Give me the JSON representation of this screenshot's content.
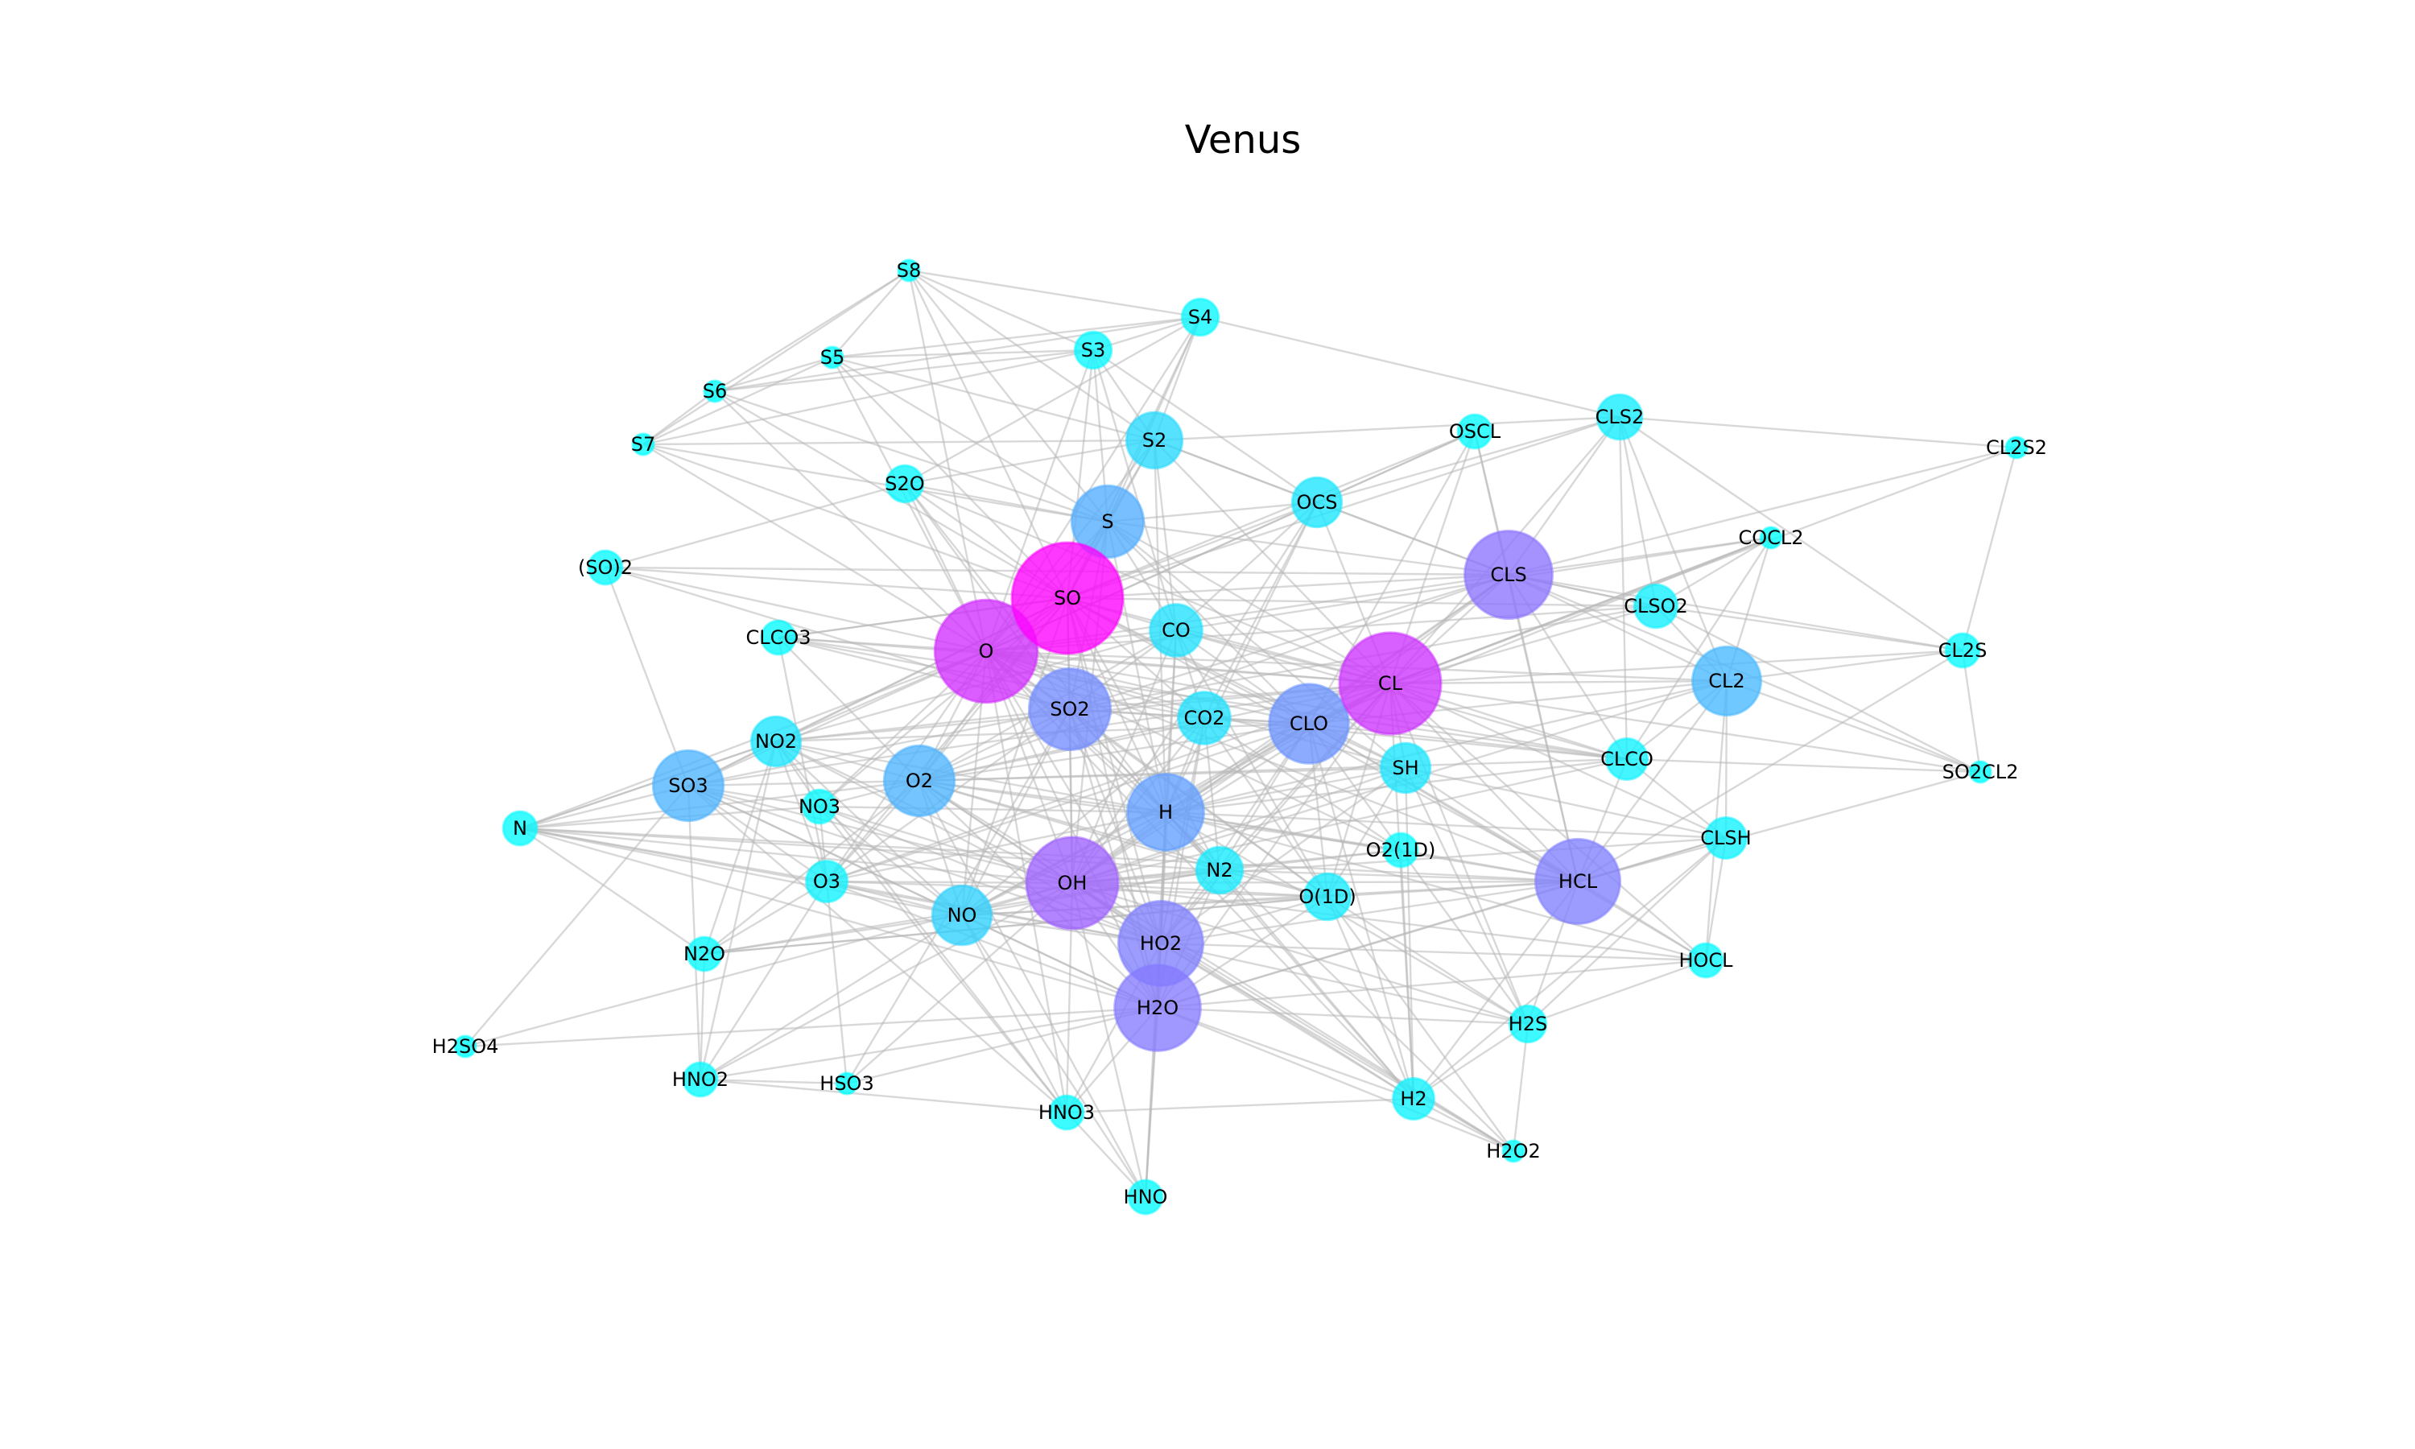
{
  "title": "Venus",
  "colors": {
    "background": "#ffffff",
    "edge": "#b8b8b8",
    "scale": [
      "#00ffff",
      "#ff00ff"
    ]
  },
  "nodes": [
    {
      "id": "S8",
      "degree": 0.0
    },
    {
      "id": "S4",
      "degree": 0.03
    },
    {
      "id": "S3",
      "degree": 0.03
    },
    {
      "id": "S5",
      "degree": 0.0
    },
    {
      "id": "S6",
      "degree": 0.0
    },
    {
      "id": "S7",
      "degree": 0.0
    },
    {
      "id": "S2",
      "degree": 0.15
    },
    {
      "id": "S2O",
      "degree": 0.03
    },
    {
      "id": "S",
      "degree": 0.32
    },
    {
      "id": "OCS",
      "degree": 0.1
    },
    {
      "id": "OSCL",
      "degree": 0.02
    },
    {
      "id": "CLS2",
      "degree": 0.07
    },
    {
      "id": "CL2S2",
      "degree": 0.0
    },
    {
      "id": "(SO)2",
      "degree": 0.02
    },
    {
      "id": "SO",
      "degree": 1.0
    },
    {
      "id": "CLS",
      "degree": 0.55
    },
    {
      "id": "COCL2",
      "degree": 0.0
    },
    {
      "id": "CLSO2",
      "degree": 0.06
    },
    {
      "id": "CLCO3",
      "degree": 0.02
    },
    {
      "id": "O",
      "degree": 0.82
    },
    {
      "id": "CO",
      "degree": 0.12
    },
    {
      "id": "CL",
      "degree": 0.8
    },
    {
      "id": "CL2",
      "degree": 0.28
    },
    {
      "id": "CL2S",
      "degree": 0.02
    },
    {
      "id": "SO2",
      "degree": 0.45
    },
    {
      "id": "CO2",
      "degree": 0.12
    },
    {
      "id": "CLO",
      "degree": 0.42
    },
    {
      "id": "NO2",
      "degree": 0.1
    },
    {
      "id": "SH",
      "degree": 0.1
    },
    {
      "id": "CLCO",
      "degree": 0.05
    },
    {
      "id": "SO3",
      "degree": 0.3
    },
    {
      "id": "O2",
      "degree": 0.3
    },
    {
      "id": "SO2CL2",
      "degree": 0.0
    },
    {
      "id": "NO3",
      "degree": 0.02
    },
    {
      "id": "H",
      "degree": 0.38
    },
    {
      "id": "N",
      "degree": 0.02
    },
    {
      "id": "O2(1D)",
      "degree": 0.02
    },
    {
      "id": "CLSH",
      "degree": 0.05
    },
    {
      "id": "N2",
      "degree": 0.08
    },
    {
      "id": "O3",
      "degree": 0.05
    },
    {
      "id": "OH",
      "degree": 0.62
    },
    {
      "id": "HCL",
      "degree": 0.5
    },
    {
      "id": "O(1D)",
      "degree": 0.08
    },
    {
      "id": "NO",
      "degree": 0.18
    },
    {
      "id": "N2O",
      "degree": 0.02
    },
    {
      "id": "HO2",
      "degree": 0.5
    },
    {
      "id": "HOCL",
      "degree": 0.02
    },
    {
      "id": "H2O",
      "degree": 0.52
    },
    {
      "id": "H2S",
      "degree": 0.03
    },
    {
      "id": "H2SO4",
      "degree": 0.0
    },
    {
      "id": "HNO2",
      "degree": 0.02
    },
    {
      "id": "HSO3",
      "degree": 0.0
    },
    {
      "id": "HNO3",
      "degree": 0.02
    },
    {
      "id": "H2",
      "degree": 0.05
    },
    {
      "id": "H2O2",
      "degree": 0.0
    },
    {
      "id": "HNO",
      "degree": 0.02
    }
  ],
  "edges": [
    [
      "S8",
      "S3"
    ],
    [
      "S8",
      "S4"
    ],
    [
      "S8",
      "S6"
    ],
    [
      "S8",
      "S7"
    ],
    [
      "S8",
      "SO"
    ],
    [
      "S8",
      "S"
    ],
    [
      "S8",
      "S2"
    ],
    [
      "S8",
      "O"
    ],
    [
      "S8",
      "S5"
    ],
    [
      "S4",
      "S3"
    ],
    [
      "S4",
      "S2"
    ],
    [
      "S4",
      "S"
    ],
    [
      "S4",
      "SO"
    ],
    [
      "S4",
      "O"
    ],
    [
      "S4",
      "CLS2"
    ],
    [
      "S4",
      "S2O"
    ],
    [
      "S4",
      "S5"
    ],
    [
      "S4",
      "S6"
    ],
    [
      "S3",
      "S2"
    ],
    [
      "S3",
      "S"
    ],
    [
      "S3",
      "SO"
    ],
    [
      "S3",
      "O"
    ],
    [
      "S3",
      "S5"
    ],
    [
      "S3",
      "S6"
    ],
    [
      "S3",
      "S7"
    ],
    [
      "S3",
      "OCS"
    ],
    [
      "S3",
      "CO"
    ],
    [
      "S5",
      "S6"
    ],
    [
      "S5",
      "S7"
    ],
    [
      "S5",
      "SO"
    ],
    [
      "S5",
      "S"
    ],
    [
      "S5",
      "O"
    ],
    [
      "S5",
      "S2"
    ],
    [
      "S6",
      "S7"
    ],
    [
      "S6",
      "SO"
    ],
    [
      "S6",
      "S"
    ],
    [
      "S6",
      "O"
    ],
    [
      "S7",
      "SO"
    ],
    [
      "S7",
      "S"
    ],
    [
      "S7",
      "O"
    ],
    [
      "S7",
      "S2"
    ],
    [
      "S2",
      "S"
    ],
    [
      "S2",
      "SO"
    ],
    [
      "S2",
      "O"
    ],
    [
      "S2",
      "OCS"
    ],
    [
      "S2",
      "CLS"
    ],
    [
      "S2",
      "CL"
    ],
    [
      "S2",
      "H"
    ],
    [
      "S2",
      "S2O"
    ],
    [
      "S2",
      "CO"
    ],
    [
      "S2O",
      "SO"
    ],
    [
      "S2O",
      "O"
    ],
    [
      "S2O",
      "S"
    ],
    [
      "S2O",
      "SO2"
    ],
    [
      "S2O",
      "CL"
    ],
    [
      "S2O",
      "H"
    ],
    [
      "S",
      "SO"
    ],
    [
      "S",
      "O"
    ],
    [
      "S",
      "O2"
    ],
    [
      "S",
      "OCS"
    ],
    [
      "S",
      "CO"
    ],
    [
      "S",
      "CLS"
    ],
    [
      "S",
      "CL"
    ],
    [
      "S",
      "H"
    ],
    [
      "S",
      "OH"
    ],
    [
      "S",
      "SH"
    ],
    [
      "S",
      "SO2"
    ],
    [
      "S",
      "CLO"
    ],
    [
      "OCS",
      "O"
    ],
    [
      "OCS",
      "SO"
    ],
    [
      "OCS",
      "CO"
    ],
    [
      "OCS",
      "CLS"
    ],
    [
      "OCS",
      "CL"
    ],
    [
      "OCS",
      "OH"
    ],
    [
      "OCS",
      "H"
    ],
    [
      "OCS",
      "CO2"
    ],
    [
      "OCS",
      "OSCL"
    ],
    [
      "OCS",
      "CLS2"
    ],
    [
      "OSCL",
      "CLS"
    ],
    [
      "OSCL",
      "CL"
    ],
    [
      "OSCL",
      "SO"
    ],
    [
      "OSCL",
      "O"
    ],
    [
      "OSCL",
      "CLO"
    ],
    [
      "OSCL",
      "HCL"
    ],
    [
      "CLS2",
      "CL2S2"
    ],
    [
      "CLS2",
      "CLS"
    ],
    [
      "CLS2",
      "CL"
    ],
    [
      "CLS2",
      "CL2"
    ],
    [
      "CLS2",
      "S2"
    ],
    [
      "CLS2",
      "SO"
    ],
    [
      "CLS2",
      "CLSO2"
    ],
    [
      "CLS2",
      "CLCO"
    ],
    [
      "CL2S2",
      "CLS"
    ],
    [
      "CL2S2",
      "CL2S"
    ],
    [
      "CL2S2",
      "CL"
    ],
    [
      "(SO)2",
      "SO"
    ],
    [
      "(SO)2",
      "SO2"
    ],
    [
      "(SO)2",
      "S2O"
    ],
    [
      "(SO)2",
      "O"
    ],
    [
      "(SO)2",
      "SO3"
    ],
    [
      "(SO)2",
      "CLS"
    ],
    [
      "SO",
      "O"
    ],
    [
      "SO",
      "O2"
    ],
    [
      "SO",
      "SO2"
    ],
    [
      "SO",
      "SO3"
    ],
    [
      "SO",
      "CO"
    ],
    [
      "SO",
      "CO2"
    ],
    [
      "SO",
      "CLO"
    ],
    [
      "SO",
      "CL"
    ],
    [
      "SO",
      "CLS"
    ],
    [
      "SO",
      "OH"
    ],
    [
      "SO",
      "H"
    ],
    [
      "SO",
      "HO2"
    ],
    [
      "SO",
      "NO"
    ],
    [
      "SO",
      "NO2"
    ],
    [
      "SO",
      "NO3"
    ],
    [
      "SO",
      "O3"
    ],
    [
      "SO",
      "SH"
    ],
    [
      "SO",
      "CLSO2"
    ],
    [
      "SO",
      "CLCO3"
    ],
    [
      "SO",
      "H2O"
    ],
    [
      "SO",
      "N2"
    ],
    [
      "SO",
      "HCL"
    ],
    [
      "CLS",
      "CL"
    ],
    [
      "CLS",
      "CL2"
    ],
    [
      "CLS",
      "CLO"
    ],
    [
      "CLS",
      "O"
    ],
    [
      "CLS",
      "SO2"
    ],
    [
      "CLS",
      "CLSO2"
    ],
    [
      "CLS",
      "COCL2"
    ],
    [
      "CLS",
      "CL2S"
    ],
    [
      "CLS",
      "HCL"
    ],
    [
      "CLS",
      "CLCO"
    ],
    [
      "CLS",
      "H"
    ],
    [
      "CLS",
      "OH"
    ],
    [
      "CLS",
      "SO2CL2"
    ],
    [
      "CLS",
      "O2"
    ],
    [
      "COCL2",
      "CL"
    ],
    [
      "COCL2",
      "CLCO"
    ],
    [
      "COCL2",
      "CL2"
    ],
    [
      "COCL2",
      "CLO"
    ],
    [
      "COCL2",
      "CO"
    ],
    [
      "COCL2",
      "CLSO2"
    ],
    [
      "CLSO2",
      "CL"
    ],
    [
      "CLSO2",
      "SO2"
    ],
    [
      "CLSO2",
      "CL2"
    ],
    [
      "CLSO2",
      "SO2CL2"
    ],
    [
      "CLSO2",
      "O"
    ],
    [
      "CLSO2",
      "CLS"
    ],
    [
      "CLCO3",
      "CLCO"
    ],
    [
      "CLCO3",
      "O2"
    ],
    [
      "CLCO3",
      "CL"
    ],
    [
      "CLCO3",
      "CO2"
    ],
    [
      "CLCO3",
      "O"
    ],
    [
      "CLCO3",
      "SO"
    ],
    [
      "CLCO3",
      "O3"
    ],
    [
      "O",
      "O2"
    ],
    [
      "O",
      "O3"
    ],
    [
      "O",
      "SO2"
    ],
    [
      "O",
      "SO3"
    ],
    [
      "O",
      "CO"
    ],
    [
      "O",
      "CO2"
    ],
    [
      "O",
      "CLO"
    ],
    [
      "O",
      "CL"
    ],
    [
      "O",
      "OH"
    ],
    [
      "O",
      "HO2"
    ],
    [
      "O",
      "H"
    ],
    [
      "O",
      "NO"
    ],
    [
      "O",
      "NO2"
    ],
    [
      "O",
      "NO3"
    ],
    [
      "O",
      "H2O"
    ],
    [
      "O",
      "N"
    ],
    [
      "O",
      "N2"
    ],
    [
      "O",
      "HCL"
    ],
    [
      "O",
      "CL2"
    ],
    [
      "O",
      "SH"
    ],
    [
      "O",
      "H2"
    ],
    [
      "O",
      "O(1D)"
    ],
    [
      "O",
      "O2(1D)"
    ],
    [
      "O",
      "CLCO"
    ],
    [
      "O",
      "HNO3"
    ],
    [
      "CO",
      "CO2"
    ],
    [
      "CO",
      "OH"
    ],
    [
      "CO",
      "O2"
    ],
    [
      "CO",
      "CLCO"
    ],
    [
      "CO",
      "CL"
    ],
    [
      "CO",
      "H"
    ],
    [
      "CO",
      "CLO"
    ],
    [
      "CO",
      "HO2"
    ],
    [
      "CO",
      "SO2"
    ],
    [
      "CO",
      "NO2"
    ],
    [
      "CO",
      "O(1D)"
    ],
    [
      "CL",
      "CL2"
    ],
    [
      "CL",
      "CLO"
    ],
    [
      "CL",
      "HCL"
    ],
    [
      "CL",
      "CLCO"
    ],
    [
      "CL",
      "COCL2"
    ],
    [
      "CL",
      "O2"
    ],
    [
      "CL",
      "O3"
    ],
    [
      "CL",
      "H"
    ],
    [
      "CL",
      "HO2"
    ],
    [
      "CL",
      "OH"
    ],
    [
      "CL",
      "H2"
    ],
    [
      "CL",
      "SH"
    ],
    [
      "CL",
      "H2S"
    ],
    [
      "CL",
      "CLSH"
    ],
    [
      "CL",
      "HOCL"
    ],
    [
      "CL",
      "SO2"
    ],
    [
      "CL",
      "SO3"
    ],
    [
      "CL",
      "CL2S"
    ],
    [
      "CL",
      "SO2CL2"
    ],
    [
      "CL",
      "NO"
    ],
    [
      "CL",
      "NO2"
    ],
    [
      "CL",
      "H2O"
    ],
    [
      "CL",
      "N2"
    ],
    [
      "CL",
      "O(1D)"
    ],
    [
      "CL2",
      "CL2S"
    ],
    [
      "CL2",
      "CLO"
    ],
    [
      "CL2",
      "HCL"
    ],
    [
      "CL2",
      "CLCO"
    ],
    [
      "CL2",
      "SO2CL2"
    ],
    [
      "CL2",
      "H"
    ],
    [
      "CL2",
      "CLSH"
    ],
    [
      "CL2",
      "HOCL"
    ],
    [
      "CL2",
      "OH"
    ],
    [
      "CL2S",
      "CLSO2"
    ],
    [
      "CL2S",
      "HCL"
    ],
    [
      "CL2S",
      "CLS2"
    ],
    [
      "SO2",
      "SO3"
    ],
    [
      "SO2",
      "O2"
    ],
    [
      "SO2",
      "OH"
    ],
    [
      "SO2",
      "HO2"
    ],
    [
      "SO2",
      "H"
    ],
    [
      "SO2",
      "CLO"
    ],
    [
      "SO2",
      "NO2"
    ],
    [
      "SO2",
      "NO"
    ],
    [
      "SO2",
      "O3"
    ],
    [
      "SO2",
      "CO2"
    ],
    [
      "SO2",
      "H2O"
    ],
    [
      "SO2",
      "HSO3"
    ],
    [
      "SO2",
      "CLCO3"
    ],
    [
      "SO2",
      "N2"
    ],
    [
      "SO2",
      "O(1D)"
    ],
    [
      "CO2",
      "OH"
    ],
    [
      "CO2",
      "O2"
    ],
    [
      "CO2",
      "H"
    ],
    [
      "CO2",
      "CLO"
    ],
    [
      "CO2",
      "HO2"
    ],
    [
      "CO2",
      "O(1D)"
    ],
    [
      "CO2",
      "CLCO"
    ],
    [
      "CO2",
      "N2"
    ],
    [
      "CO2",
      "H2O"
    ],
    [
      "CO2",
      "NO"
    ],
    [
      "CO2",
      "O2(1D)"
    ],
    [
      "CLO",
      "O2"
    ],
    [
      "CLO",
      "OH"
    ],
    [
      "CLO",
      "HO2"
    ],
    [
      "CLO",
      "H"
    ],
    [
      "CLO",
      "NO"
    ],
    [
      "CLO",
      "NO2"
    ],
    [
      "CLO",
      "HCL"
    ],
    [
      "CLO",
      "HOCL"
    ],
    [
      "CLO",
      "O3"
    ],
    [
      "CLO",
      "CLCO"
    ],
    [
      "CLO",
      "SH"
    ],
    [
      "CLO",
      "N2"
    ],
    [
      "CLO",
      "H2"
    ],
    [
      "CLO",
      "O(1D)"
    ],
    [
      "CLO",
      "O2(1D)"
    ],
    [
      "NO2",
      "NO"
    ],
    [
      "NO2",
      "NO3"
    ],
    [
      "NO2",
      "O2"
    ],
    [
      "NO2",
      "O3"
    ],
    [
      "NO2",
      "OH"
    ],
    [
      "NO2",
      "H"
    ],
    [
      "NO2",
      "HO2"
    ],
    [
      "NO2",
      "HNO2"
    ],
    [
      "NO2",
      "HNO3"
    ],
    [
      "NO2",
      "SO3"
    ],
    [
      "NO2",
      "N2O"
    ],
    [
      "NO2",
      "N"
    ],
    [
      "SH",
      "H"
    ],
    [
      "SH",
      "H2S"
    ],
    [
      "SH",
      "O2"
    ],
    [
      "SH",
      "OH"
    ],
    [
      "SH",
      "HO2"
    ],
    [
      "SH",
      "CLSH"
    ],
    [
      "SH",
      "HCL"
    ],
    [
      "SH",
      "H2"
    ],
    [
      "SH",
      "O(1D)"
    ],
    [
      "CLCO",
      "HCL"
    ],
    [
      "CLCO",
      "O2"
    ],
    [
      "CLCO",
      "OH"
    ],
    [
      "CLCO",
      "H"
    ],
    [
      "CLCO",
      "CLSH"
    ],
    [
      "CLCO",
      "SO2CL2"
    ],
    [
      "SO3",
      "O2"
    ],
    [
      "SO3",
      "H2O"
    ],
    [
      "SO3",
      "H2SO4"
    ],
    [
      "SO3",
      "OH"
    ],
    [
      "SO3",
      "HO2"
    ],
    [
      "SO3",
      "N"
    ],
    [
      "SO3",
      "NO"
    ],
    [
      "SO3",
      "O3"
    ],
    [
      "SO3",
      "NO3"
    ],
    [
      "SO3",
      "HNO2"
    ],
    [
      "SO3",
      "HNO3"
    ],
    [
      "O2",
      "O3"
    ],
    [
      "O2",
      "OH"
    ],
    [
      "O2",
      "HO2"
    ],
    [
      "O2",
      "H"
    ],
    [
      "O2",
      "NO"
    ],
    [
      "O2",
      "NO3"
    ],
    [
      "O2",
      "N"
    ],
    [
      "O2",
      "N2"
    ],
    [
      "O2",
      "H2O"
    ],
    [
      "O2",
      "O(1D)"
    ],
    [
      "O2",
      "O2(1D)"
    ],
    [
      "O2",
      "H2O2"
    ],
    [
      "O2",
      "N2O"
    ],
    [
      "O2",
      "HNO"
    ],
    [
      "SO2CL2",
      "CL2S"
    ],
    [
      "SO2CL2",
      "HCL"
    ],
    [
      "NO3",
      "NO"
    ],
    [
      "NO3",
      "O3"
    ],
    [
      "NO3",
      "OH"
    ],
    [
      "NO3",
      "HO2"
    ],
    [
      "NO3",
      "N"
    ],
    [
      "NO3",
      "HNO3"
    ],
    [
      "NO3",
      "H"
    ],
    [
      "H",
      "OH"
    ],
    [
      "H",
      "HO2"
    ],
    [
      "H",
      "H2"
    ],
    [
      "H",
      "H2O"
    ],
    [
      "H",
      "HCL"
    ],
    [
      "H",
      "O3"
    ],
    [
      "H",
      "NO"
    ],
    [
      "H",
      "HNO"
    ],
    [
      "H",
      "HOCL"
    ],
    [
      "H",
      "H2O2"
    ],
    [
      "H",
      "H2S"
    ],
    [
      "H",
      "N2"
    ],
    [
      "H",
      "CLSH"
    ],
    [
      "H",
      "O2(1D)"
    ],
    [
      "N",
      "NO"
    ],
    [
      "N",
      "O3"
    ],
    [
      "N",
      "OH"
    ],
    [
      "N",
      "N2"
    ],
    [
      "N",
      "N2O"
    ],
    [
      "N",
      "HO2"
    ],
    [
      "N",
      "H2O"
    ],
    [
      "N",
      "HCL"
    ],
    [
      "N",
      "NO2"
    ],
    [
      "O2(1D)",
      "HCL"
    ],
    [
      "O2(1D)",
      "H2"
    ],
    [
      "O2(1D)",
      "N2"
    ],
    [
      "O2(1D)",
      "OH"
    ],
    [
      "O2(1D)",
      "H2S"
    ],
    [
      "CLSH",
      "HCL"
    ],
    [
      "CLSH",
      "H2S"
    ],
    [
      "CLSH",
      "HOCL"
    ],
    [
      "CLSH",
      "OH"
    ],
    [
      "CLSH",
      "H2"
    ],
    [
      "CLSH",
      "H2O"
    ],
    [
      "N2",
      "O(1D)"
    ],
    [
      "N2",
      "N2O"
    ],
    [
      "N2",
      "NO"
    ],
    [
      "N2",
      "OH"
    ],
    [
      "N2",
      "HO2"
    ],
    [
      "N2",
      "H2O"
    ],
    [
      "N2",
      "HCL"
    ],
    [
      "N2",
      "H2"
    ],
    [
      "O3",
      "OH"
    ],
    [
      "O3",
      "HO2"
    ],
    [
      "O3",
      "NO"
    ],
    [
      "O3",
      "O(1D)"
    ],
    [
      "O3",
      "N2O"
    ],
    [
      "O3",
      "HNO2"
    ],
    [
      "O3",
      "HSO3"
    ],
    [
      "O3",
      "H2O"
    ],
    [
      "OH",
      "HO2"
    ],
    [
      "OH",
      "H2O"
    ],
    [
      "OH",
      "HCL"
    ],
    [
      "OH",
      "HOCL"
    ],
    [
      "OH",
      "H2"
    ],
    [
      "OH",
      "NO"
    ],
    [
      "OH",
      "HNO"
    ],
    [
      "OH",
      "HNO2"
    ],
    [
      "OH",
      "HNO3"
    ],
    [
      "OH",
      "H2O2"
    ],
    [
      "OH",
      "H2S"
    ],
    [
      "OH",
      "HSO3"
    ],
    [
      "OH",
      "O(1D)"
    ],
    [
      "OH",
      "H2SO4"
    ],
    [
      "HCL",
      "O(1D)"
    ],
    [
      "HCL",
      "HOCL"
    ],
    [
      "HCL",
      "H2"
    ],
    [
      "HCL",
      "H2S"
    ],
    [
      "HCL",
      "H2O"
    ],
    [
      "HCL",
      "HO2"
    ],
    [
      "HCL",
      "NO"
    ],
    [
      "O(1D)",
      "H2O"
    ],
    [
      "O(1D)",
      "H2"
    ],
    [
      "O(1D)",
      "HO2"
    ],
    [
      "O(1D)",
      "N2O"
    ],
    [
      "O(1D)",
      "H2S"
    ],
    [
      "O(1D)",
      "NO"
    ],
    [
      "O(1D)",
      "H2O2"
    ],
    [
      "NO",
      "HO2"
    ],
    [
      "NO",
      "N2O"
    ],
    [
      "NO",
      "HNO"
    ],
    [
      "NO",
      "HNO2"
    ],
    [
      "NO",
      "HNO3"
    ],
    [
      "NO",
      "H2O"
    ],
    [
      "N2O",
      "HNO2"
    ],
    [
      "N2O",
      "O(1D)"
    ],
    [
      "HO2",
      "H2O"
    ],
    [
      "HO2",
      "H2O2"
    ],
    [
      "HO2",
      "H2"
    ],
    [
      "HO2",
      "HNO3"
    ],
    [
      "HO2",
      "H2S"
    ],
    [
      "HO2",
      "HOCL"
    ],
    [
      "HO2",
      "HNO"
    ],
    [
      "HOCL",
      "H2O"
    ],
    [
      "HOCL",
      "H2S"
    ],
    [
      "H2O",
      "H2SO4"
    ],
    [
      "H2O",
      "H2O2"
    ],
    [
      "H2O",
      "H2"
    ],
    [
      "H2O",
      "HNO"
    ],
    [
      "H2O",
      "HNO3"
    ],
    [
      "H2O",
      "HSO3"
    ],
    [
      "H2O",
      "H2S"
    ],
    [
      "H2O",
      "HNO2"
    ],
    [
      "H2S",
      "H2"
    ],
    [
      "H2S",
      "H2O2"
    ],
    [
      "HNO2",
      "HSO3"
    ],
    [
      "HNO2",
      "HNO3"
    ],
    [
      "HNO3",
      "H2"
    ],
    [
      "HNO3",
      "HNO"
    ],
    [
      "H2",
      "H2O2"
    ]
  ]
}
